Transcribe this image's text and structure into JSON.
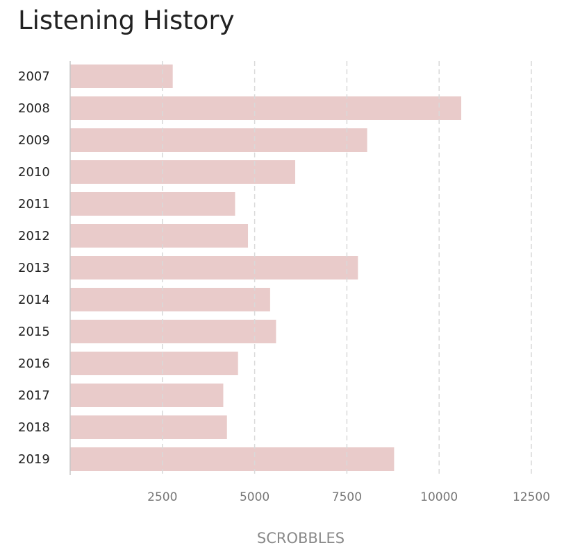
{
  "chart_data": {
    "type": "bar",
    "orientation": "horizontal",
    "title": "Listening History",
    "xlabel": "SCROBBLES",
    "ylabel": "",
    "categories": [
      "2007",
      "2008",
      "2009",
      "2010",
      "2011",
      "2012",
      "2013",
      "2014",
      "2015",
      "2016",
      "2017",
      "2018",
      "2019"
    ],
    "values": [
      2780,
      10600,
      8050,
      6100,
      4470,
      4820,
      7800,
      5420,
      5580,
      4550,
      4150,
      4250,
      8780
    ],
    "xlim": [
      0,
      12500
    ],
    "xticks": [
      2500,
      5000,
      7500,
      10000,
      12500
    ],
    "xtick_labels": [
      "2500",
      "5000",
      "7500",
      "10000",
      "12500"
    ],
    "grid": "vertical dashed",
    "bar_color": "#e9cbca",
    "grid_color": "#d9d9d9",
    "axis_color": "#c8c8c8"
  }
}
